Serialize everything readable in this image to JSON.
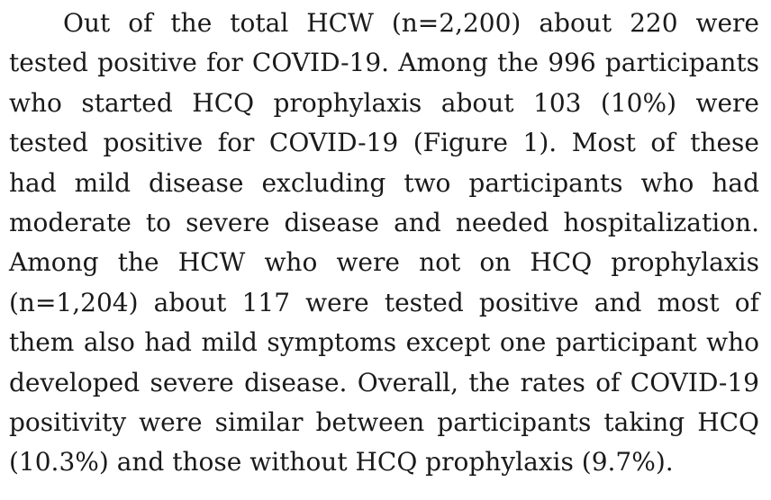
{
  "document": {
    "paragraph": "Out of the total HCW (n=2,200) about 220 were tested positive for COVID-19. Among the 996 participants who started HCQ prophylaxis about 103 (10%) were tested positive for COVID-19 (Figure 1). Most of these had mild disease excluding two participants who had moderate to severe disease and needed hospitalization. Among the HCW who were not on HCQ prophylaxis (n=1,204) about 117 were tested positive and most of them also had mild symptoms except one participant who developed severe disease. Overall, the rates of COVID-19 positivity were similar between participants taking HCQ (10.3%) and those without HCQ prophylaxis (9.7%)."
  }
}
